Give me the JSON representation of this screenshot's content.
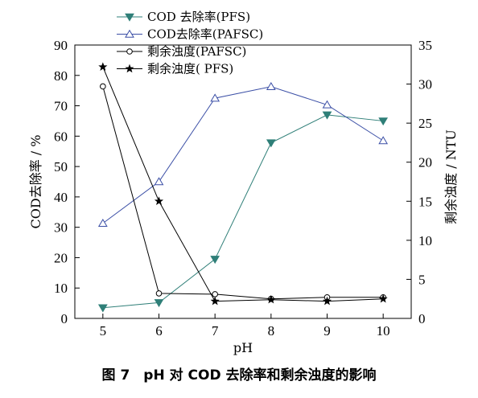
{
  "chart_data": {
    "type": "line",
    "caption": "图 7　pH 对 COD 去除率和剩余浊度的影响",
    "xlabel": "pH",
    "ylabel_left": "COD去除率 / %",
    "ylabel_right": "剩余浊度 / NTU",
    "x": [
      5,
      6,
      7,
      8,
      9,
      10
    ],
    "xlim": [
      4.5,
      10.5
    ],
    "ylim_left": [
      0,
      90
    ],
    "ylim_right": [
      0,
      35
    ],
    "xticks": [
      "5",
      "6",
      "7",
      "8",
      "9",
      "10"
    ],
    "yticks_left": [
      "0",
      "10",
      "20",
      "30",
      "40",
      "50",
      "60",
      "70",
      "80",
      "90"
    ],
    "yticks_right": [
      "0",
      "5",
      "10",
      "15",
      "20",
      "25",
      "30",
      "35"
    ],
    "grid": false,
    "legend_position": "top-center",
    "series": [
      {
        "name": "COD 去除率(PFS)",
        "axis": "left",
        "marker": "triangle-down-filled",
        "color": "#2f7f78",
        "values": [
          3.5,
          5.2,
          19.5,
          57.8,
          67.0,
          65.0
        ]
      },
      {
        "name": "COD去除率(PAFSC)",
        "axis": "left",
        "marker": "triangle-up-open",
        "color": "#3b4fa6",
        "values": [
          31.3,
          45.0,
          72.5,
          76.3,
          70.3,
          58.5
        ]
      },
      {
        "name": "剩余浊度(PAFSC)",
        "axis": "right",
        "marker": "circle-open",
        "color": "#000000",
        "values": [
          29.7,
          3.2,
          3.1,
          2.5,
          2.7,
          2.7
        ]
      },
      {
        "name": "剩余浊度( PFS)",
        "axis": "right",
        "marker": "star",
        "color": "#000000",
        "values": [
          32.2,
          15.0,
          2.2,
          2.4,
          2.2,
          2.5
        ]
      }
    ]
  }
}
